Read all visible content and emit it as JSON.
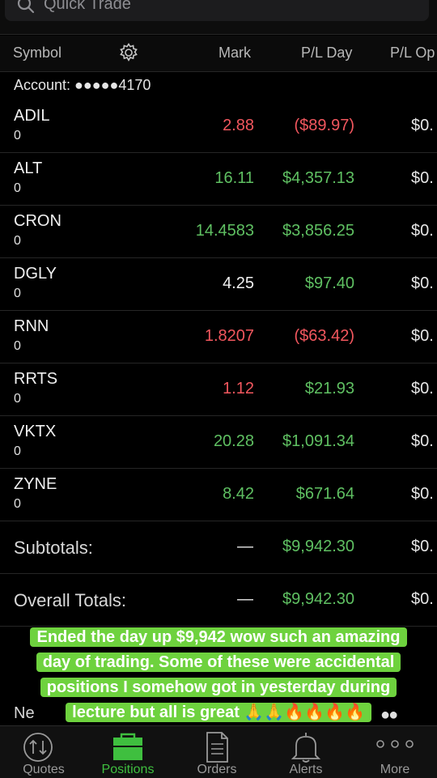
{
  "search": {
    "placeholder": "Quick Trade"
  },
  "table": {
    "headers": {
      "symbol": "Symbol",
      "mark": "Mark",
      "pl_day": "P/L Day",
      "pl_open": "P/L Op"
    },
    "account_label": "Account: ●●●●●4170",
    "rows": [
      {
        "symbol": "ADIL",
        "qty": "0",
        "mark": "2.88",
        "pl_day": "($89.97)",
        "pl_open": "$0.",
        "mark_color": "red",
        "pl_color": "red"
      },
      {
        "symbol": "ALT",
        "qty": "0",
        "mark": "16.11",
        "pl_day": "$4,357.13",
        "pl_open": "$0.",
        "mark_color": "green",
        "pl_color": "green"
      },
      {
        "symbol": "CRON",
        "qty": "0",
        "mark": "14.4583",
        "pl_day": "$3,856.25",
        "pl_open": "$0.",
        "mark_color": "green",
        "pl_color": "green"
      },
      {
        "symbol": "DGLY",
        "qty": "0",
        "mark": "4.25",
        "pl_day": "$97.40",
        "pl_open": "$0.",
        "mark_color": "white",
        "pl_color": "green"
      },
      {
        "symbol": "RNN",
        "qty": "0",
        "mark": "1.8207",
        "pl_day": "($63.42)",
        "pl_open": "$0.",
        "mark_color": "red",
        "pl_color": "red"
      },
      {
        "symbol": "RRTS",
        "qty": "0",
        "mark": "1.12",
        "pl_day": "$21.93",
        "pl_open": "$0.",
        "mark_color": "red",
        "pl_color": "green"
      },
      {
        "symbol": "VKTX",
        "qty": "0",
        "mark": "20.28",
        "pl_day": "$1,091.34",
        "pl_open": "$0.",
        "mark_color": "green",
        "pl_color": "green"
      },
      {
        "symbol": "ZYNE",
        "qty": "0",
        "mark": "8.42",
        "pl_day": "$671.64",
        "pl_open": "$0.",
        "mark_color": "green",
        "pl_color": "green"
      }
    ],
    "subtotals": {
      "label": "Subtotals:",
      "mark": "—",
      "pl_day": "$9,942.30",
      "pl_open": "$0."
    },
    "overall": {
      "label": "Overall Totals:",
      "mark": "—",
      "pl_day": "$9,942.30",
      "pl_open": "$0."
    },
    "next_section_peek": "Ne",
    "next_section_dots": "●●"
  },
  "caption": {
    "lines": [
      "Ended the day up $9,942 wow such an amazing",
      "day of trading. Some of these were accidental",
      "positions I somehow got in yesterday during",
      "lecture but all is great 🙏🙏🔥🔥🔥🔥"
    ]
  },
  "tabs": [
    {
      "label": "Quotes",
      "icon": "quotes-icon",
      "active": false
    },
    {
      "label": "Positions",
      "icon": "briefcase-icon",
      "active": true
    },
    {
      "label": "Orders",
      "icon": "document-icon",
      "active": false
    },
    {
      "label": "Alerts",
      "icon": "bell-icon",
      "active": false
    },
    {
      "label": "More",
      "icon": "more-dots-icon",
      "active": false
    }
  ],
  "colors": {
    "red": "#f2575e",
    "green": "#5fc062",
    "tab_active": "#3fbf3f",
    "caption_bg": "#6ed23e"
  }
}
